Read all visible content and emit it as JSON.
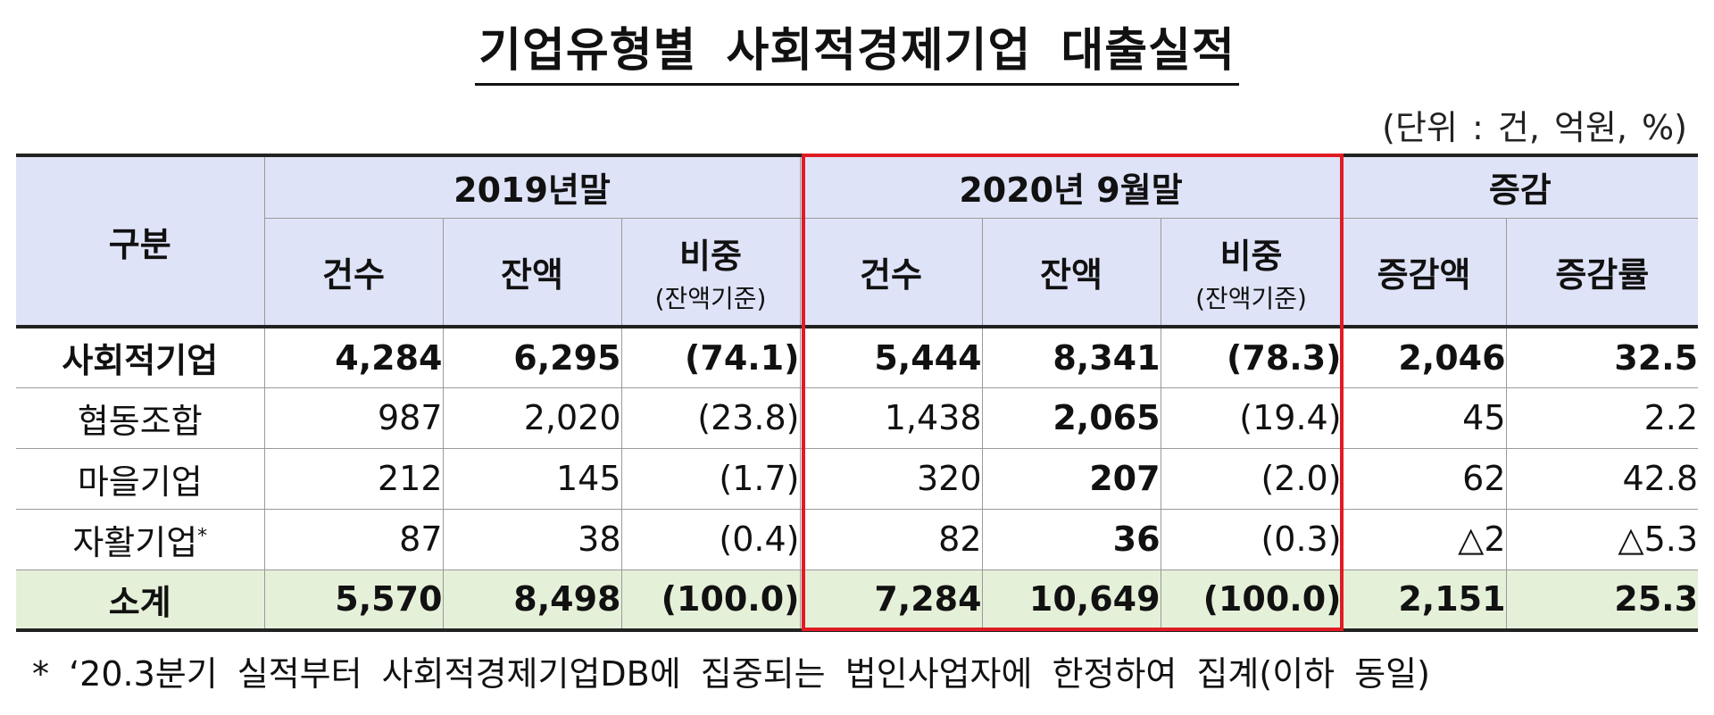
{
  "title": "기업유형별 사회적경제기업 대출실적",
  "unit": "(단위 : 건, 억원, %)",
  "header": {
    "category": "구분",
    "group_2019": "2019년말",
    "group_2020": "2020년 9월말",
    "group_change": "증감",
    "count": "건수",
    "balance": "잔액",
    "share": "비중",
    "share_basis": "(잔액기준)",
    "change_amount": "증감액",
    "change_rate": "증감률"
  },
  "rows": [
    {
      "label": "사회적기업",
      "sup": "",
      "c2019": "4,284",
      "b2019": "6,295",
      "s2019": "(74.1)",
      "c2020": "5,444",
      "b2020": "8,341",
      "s2020": "(78.3)",
      "amt": "2,046",
      "rate": "32.5"
    },
    {
      "label": "협동조합",
      "sup": "",
      "c2019": "987",
      "b2019": "2,020",
      "s2019": "(23.8)",
      "c2020": "1,438",
      "b2020": "2,065",
      "s2020": "(19.4)",
      "amt": "45",
      "rate": "2.2"
    },
    {
      "label": "마을기업",
      "sup": "",
      "c2019": "212",
      "b2019": "145",
      "s2019": "(1.7)",
      "c2020": "320",
      "b2020": "207",
      "s2020": "(2.0)",
      "amt": "62",
      "rate": "42.8"
    },
    {
      "label": "자활기업",
      "sup": "*",
      "c2019": "87",
      "b2019": "38",
      "s2019": "(0.4)",
      "c2020": "82",
      "b2020": "36",
      "s2020": "(0.3)",
      "amt": "△2",
      "rate": "△5.3"
    },
    {
      "label": "소계",
      "sup": "",
      "c2019": "5,570",
      "b2019": "8,498",
      "s2019": "(100.0)",
      "c2020": "7,284",
      "b2020": "10,649",
      "s2020": "(100.0)",
      "amt": "2,151",
      "rate": "25.3"
    }
  ],
  "footnote": "* ‘20.3분기 실적부터 사회적경제기업DB에 집중되는 법인사업자에 한정하여 집계(이하 동일)",
  "colors": {
    "header_bg": "#dfe3f7",
    "total_bg": "#e5f0d9",
    "highlight_border": "#e01b24"
  }
}
